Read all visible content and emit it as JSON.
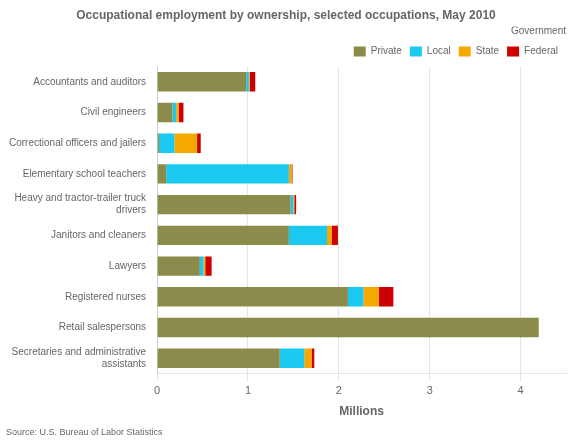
{
  "chart_data": {
    "type": "bar",
    "orientation": "horizontal",
    "stacked": true,
    "title": "Occupational employment by ownership, selected occupations, May 2010",
    "xlabel": "Millions",
    "categories": [
      "Accountants and auditors",
      "Civil engineers",
      "Correctional officers and jailers",
      "Elementary school teachers",
      "Heavy and tractor-trailer truck\ndrivers",
      "Janitors and cleaners",
      "Lawyers",
      "Registered nurses",
      "Retail salespersons",
      "Secretaries and administrative\nassistants"
    ],
    "series": [
      {
        "name": "Private",
        "color": "#8B8B4B",
        "values": [
          0.98,
          0.17,
          0.02,
          0.1,
          1.47,
          1.45,
          0.47,
          2.1,
          4.2,
          1.35
        ]
      },
      {
        "name": "Local",
        "color": "#1BC8F0",
        "values": [
          0.03,
          0.04,
          0.17,
          1.35,
          0.03,
          0.42,
          0.04,
          0.17,
          0.0,
          0.27
        ]
      },
      {
        "name": "State",
        "color": "#F5A800",
        "values": [
          0.01,
          0.03,
          0.25,
          0.03,
          0.01,
          0.05,
          0.02,
          0.17,
          0.0,
          0.08
        ]
      },
      {
        "name": "Federal",
        "color": "#CC0000",
        "values": [
          0.06,
          0.05,
          0.04,
          0.01,
          0.02,
          0.07,
          0.07,
          0.16,
          0.0,
          0.03
        ]
      }
    ],
    "xlim": [
      0,
      4.5
    ],
    "xticks": [
      0,
      1,
      2,
      3,
      4
    ],
    "grid": true,
    "legend": "top",
    "annotations": [
      "Government",
      "Source: U.S. Bureau of Labor Statistics"
    ]
  }
}
